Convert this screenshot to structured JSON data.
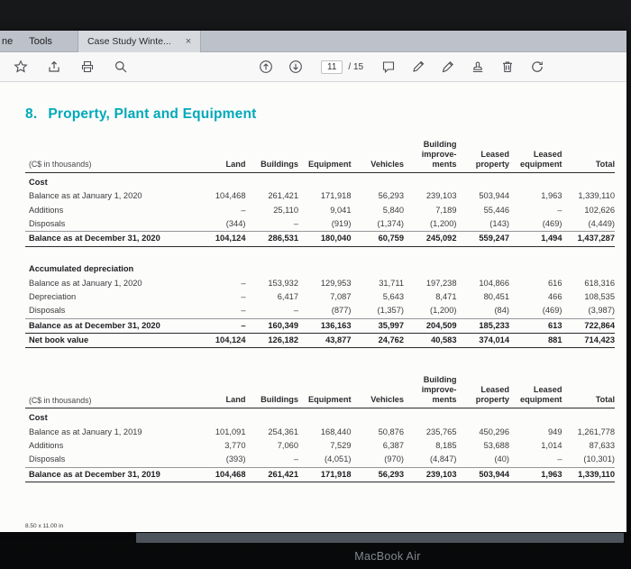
{
  "chrome": {
    "menu_partial": "ne",
    "menu_tools": "Tools",
    "tab_title": "Case Study Winte...",
    "tab_close": "×",
    "page_current": "11",
    "page_total": "/ 15",
    "toolbar_left_icons": [
      "star",
      "share-upload",
      "print",
      "search"
    ],
    "toolbar_center_icons": [
      "page-up",
      "page-down",
      "comment",
      "pencil-edit",
      "fill-and-sign",
      "stamp",
      "trash",
      "rotate"
    ]
  },
  "document": {
    "heading_number": "8.",
    "heading_text": "Property, Plant and Equipment",
    "accent_color": "#00a9ba",
    "size_note": "8.50 x 11.00 in"
  },
  "tables": [
    {
      "unit_label": "(C$ in thousands)",
      "columns": [
        "Land",
        "Buildings",
        "Equipment",
        "Vehicles",
        "Building\nimprove-\nments",
        "Leased\nproperty",
        "Leased\nequipment",
        "Total"
      ],
      "rows": [
        {
          "type": "section",
          "label": "Cost"
        },
        {
          "type": "data",
          "label": "Balance as at January 1, 2020",
          "values": [
            "104,468",
            "261,421",
            "171,918",
            "56,293",
            "239,103",
            "503,944",
            "1,963",
            "1,339,110"
          ]
        },
        {
          "type": "data",
          "label": "Additions",
          "values": [
            "–",
            "25,110",
            "9,041",
            "5,840",
            "7,189",
            "55,446",
            "–",
            "102,626"
          ]
        },
        {
          "type": "data",
          "label": "Disposals",
          "rule": "thin",
          "values": [
            "(344)",
            "–",
            "(919)",
            "(1,374)",
            "(1,200)",
            "(143)",
            "(469)",
            "(4,449)"
          ]
        },
        {
          "type": "data",
          "label": "Balance as at December 31, 2020",
          "bold": true,
          "rule": "thick",
          "values": [
            "104,124",
            "286,531",
            "180,040",
            "60,759",
            "245,092",
            "559,247",
            "1,494",
            "1,437,287"
          ]
        },
        {
          "type": "spacer"
        },
        {
          "type": "section",
          "label": "Accumulated depreciation"
        },
        {
          "type": "data",
          "label": "Balance as at January 1, 2020",
          "values": [
            "–",
            "153,932",
            "129,953",
            "31,711",
            "197,238",
            "104,866",
            "616",
            "618,316"
          ]
        },
        {
          "type": "data",
          "label": "Depreciation",
          "values": [
            "–",
            "6,417",
            "7,087",
            "5,643",
            "8,471",
            "80,451",
            "466",
            "108,535"
          ]
        },
        {
          "type": "data",
          "label": "Disposals",
          "rule": "thin",
          "values": [
            "–",
            "–",
            "(877)",
            "(1,357)",
            "(1,200)",
            "(84)",
            "(469)",
            "(3,987)"
          ]
        },
        {
          "type": "data",
          "label": "Balance as at December 31, 2020",
          "bold": true,
          "rule": "thick",
          "values": [
            "–",
            "160,349",
            "136,163",
            "35,997",
            "204,509",
            "185,233",
            "613",
            "722,864"
          ]
        },
        {
          "type": "data",
          "label": "Net book value",
          "bold": true,
          "rule": "thick",
          "values": [
            "104,124",
            "126,182",
            "43,877",
            "24,762",
            "40,583",
            "374,014",
            "881",
            "714,423"
          ]
        }
      ]
    },
    {
      "unit_label": "(C$ in thousands)",
      "columns": [
        "Land",
        "Buildings",
        "Equipment",
        "Vehicles",
        "Building\nimprove-\nments",
        "Leased\nproperty",
        "Leased\nequipment",
        "Total"
      ],
      "rows": [
        {
          "type": "section",
          "label": "Cost"
        },
        {
          "type": "data",
          "label": "Balance as at January 1, 2019",
          "values": [
            "101,091",
            "254,361",
            "168,440",
            "50,876",
            "235,765",
            "450,296",
            "949",
            "1,261,778"
          ]
        },
        {
          "type": "data",
          "label": "Additions",
          "values": [
            "3,770",
            "7,060",
            "7,529",
            "6,387",
            "8,185",
            "53,688",
            "1,014",
            "87,633"
          ]
        },
        {
          "type": "data",
          "label": "Disposals",
          "rule": "thin",
          "values": [
            "(393)",
            "–",
            "(4,051)",
            "(970)",
            "(4,847)",
            "(40)",
            "–",
            "(10,301)"
          ]
        },
        {
          "type": "data",
          "label": "Balance as at December 31, 2019",
          "bold": true,
          "rule": "thick",
          "values": [
            "104,468",
            "261,421",
            "171,918",
            "56,293",
            "239,103",
            "503,944",
            "1,963",
            "1,339,110"
          ]
        }
      ]
    }
  ],
  "device": {
    "brand": "MacBook Air"
  }
}
